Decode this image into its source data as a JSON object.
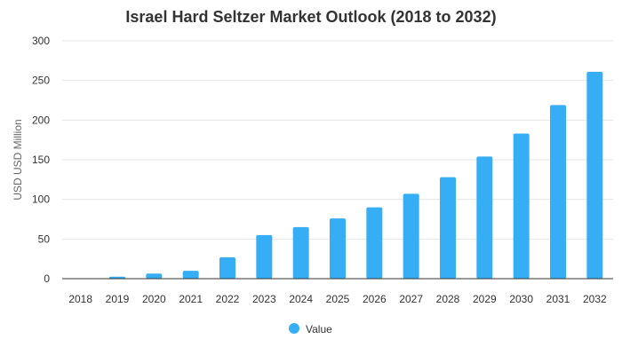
{
  "chart_data": {
    "type": "bar",
    "title": "Israel Hard Seltzer Market Outlook (2018 to 2032)",
    "xlabel": "",
    "ylabel": "USD USD Million",
    "categories": [
      "2018",
      "2019",
      "2020",
      "2021",
      "2022",
      "2023",
      "2024",
      "2025",
      "2026",
      "2027",
      "2028",
      "2029",
      "2030",
      "2031",
      "2032"
    ],
    "series": [
      {
        "name": "Value",
        "values": [
          0.5,
          2.5,
          6.5,
          10,
          27,
          55,
          65,
          76,
          90,
          107,
          128,
          154,
          183,
          219,
          261
        ]
      }
    ],
    "ylim": [
      0,
      300
    ],
    "yticks": [
      0,
      50,
      100,
      150,
      200,
      250,
      300
    ],
    "grid": true,
    "legend": "bottom-center",
    "colors": {
      "bar": "#35aef5"
    }
  }
}
